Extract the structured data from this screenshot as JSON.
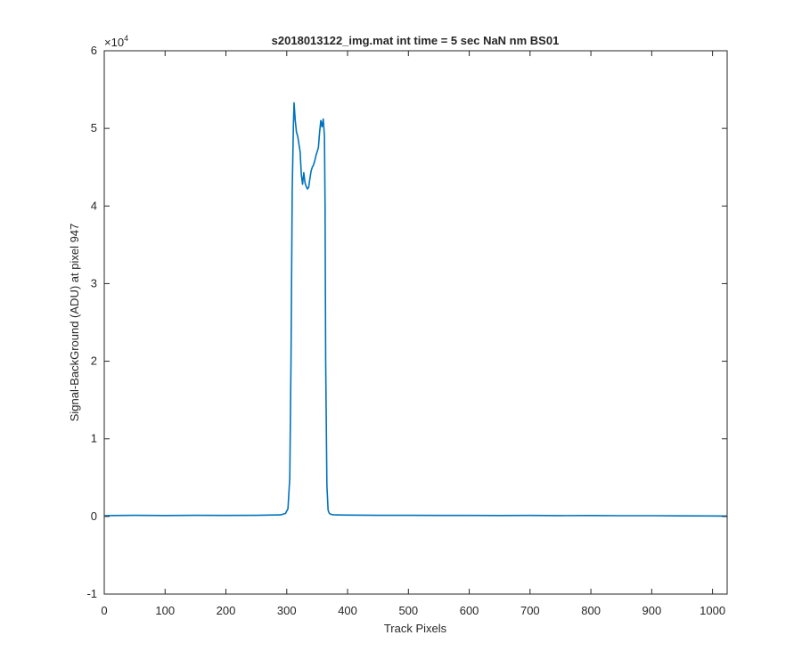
{
  "chart_data": {
    "type": "line",
    "title": "s2018013122_img.mat int time = 5 sec  NaN nm BS01",
    "xlabel": "Track Pixels",
    "ylabel": "Signal-BackGround (ADU) at pixel 947",
    "xlim": [
      0,
      1024
    ],
    "ylim": [
      -10000,
      60000
    ],
    "x_ticks": [
      0,
      100,
      200,
      300,
      400,
      500,
      600,
      700,
      800,
      900,
      1000
    ],
    "y_ticks": [
      -10000,
      0,
      10000,
      20000,
      30000,
      40000,
      50000,
      60000
    ],
    "y_tick_labels": [
      "-1",
      "0",
      "1",
      "2",
      "3",
      "4",
      "5",
      "6"
    ],
    "y_exponent_label": "×10",
    "y_exponent_power": "4",
    "grid": false,
    "color": "#0072BD",
    "series": [
      {
        "x": [
          0,
          50,
          100,
          150,
          200,
          250,
          290,
          298,
          302,
          305,
          307,
          309,
          311,
          312,
          314,
          316,
          318,
          320,
          322,
          324,
          326,
          328,
          330,
          332,
          334,
          336,
          338,
          340,
          342,
          344,
          346,
          348,
          350,
          352,
          354,
          356,
          358,
          360,
          362,
          363,
          364,
          366,
          368,
          370,
          372,
          374,
          380,
          400,
          450,
          500,
          550,
          600,
          650,
          700,
          750,
          800,
          850,
          900,
          950,
          1000,
          1024
        ],
        "y": [
          100,
          150,
          120,
          150,
          130,
          150,
          200,
          400,
          1000,
          5000,
          20000,
          42000,
          50500,
          53300,
          51000,
          49500,
          49000,
          48000,
          47000,
          44000,
          42800,
          44300,
          43000,
          42500,
          42200,
          42400,
          43500,
          44500,
          45000,
          45300,
          45800,
          46500,
          47000,
          47500,
          49500,
          51000,
          50200,
          51200,
          49000,
          40000,
          20000,
          4000,
          800,
          400,
          300,
          250,
          200,
          180,
          150,
          150,
          130,
          140,
          120,
          130,
          110,
          120,
          100,
          100,
          80,
          60,
          50
        ]
      }
    ]
  }
}
